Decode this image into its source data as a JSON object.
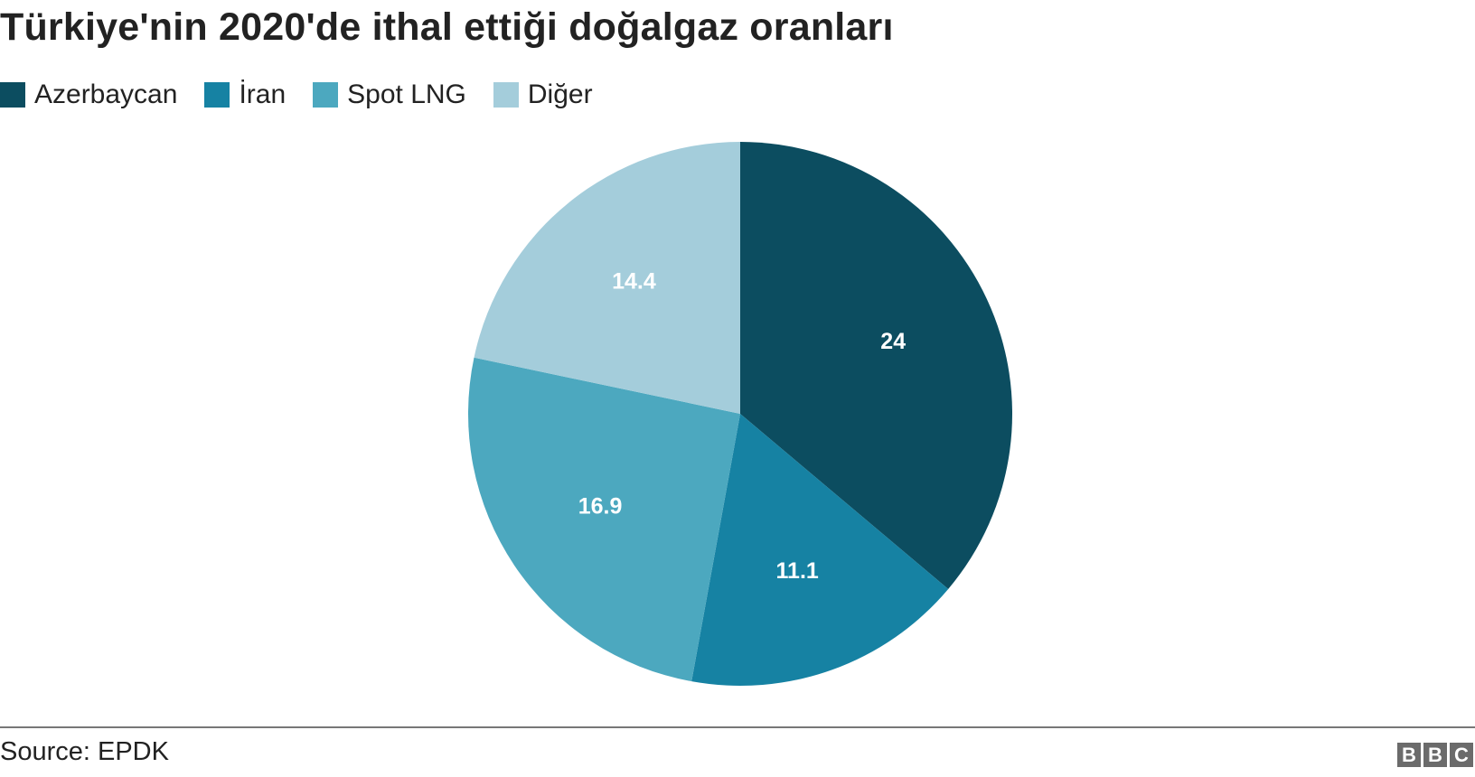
{
  "title": "Türkiye'nin 2020'de ithal ettiği doğalgaz oranları",
  "source": "Source: EPDK",
  "logo": {
    "letters": [
      "B",
      "B",
      "C"
    ]
  },
  "chart_data": {
    "type": "pie",
    "title": "Türkiye'nin 2020'de ithal ettiği doğalgaz oranları",
    "legend_position": "top-left",
    "start_angle_deg": 0,
    "direction": "clockwise",
    "categories": [
      "Azerbaycan",
      "İran",
      "Spot LNG",
      "Diğer"
    ],
    "values": [
      24,
      11.1,
      16.9,
      14.4
    ],
    "data_labels": [
      "24",
      "11.1",
      "16.9",
      "14.4"
    ],
    "colors": [
      "#0c4d60",
      "#1682a3",
      "#4ca8bf",
      "#a4cddb"
    ]
  }
}
